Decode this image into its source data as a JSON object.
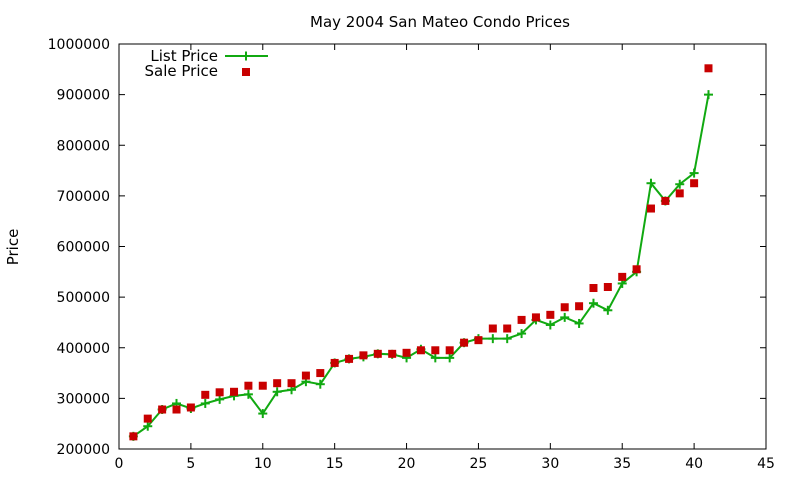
{
  "chart_data": {
    "type": "line",
    "title": "May 2004 San Mateo Condo Prices",
    "xlabel": "",
    "ylabel": "Price",
    "xlim": [
      0,
      45
    ],
    "ylim": [
      200000,
      1000000
    ],
    "x_ticks": [
      0,
      5,
      10,
      15,
      20,
      25,
      30,
      35,
      40,
      45
    ],
    "y_ticks": [
      200000,
      300000,
      400000,
      500000,
      600000,
      700000,
      800000,
      900000,
      1000000
    ],
    "grid": false,
    "legend_position": "top-left",
    "colors": {
      "list": "#11a911",
      "sale": "#c80000"
    },
    "x": [
      1,
      2,
      3,
      4,
      5,
      6,
      7,
      8,
      9,
      10,
      11,
      12,
      13,
      14,
      15,
      16,
      17,
      18,
      19,
      20,
      21,
      22,
      23,
      24,
      25,
      26,
      27,
      28,
      29,
      30,
      31,
      32,
      33,
      34,
      35,
      36,
      37,
      38,
      39,
      40,
      41
    ],
    "series": [
      {
        "name": "List Price",
        "style": "linespoints",
        "marker": "plus",
        "values": [
          225000,
          245000,
          278000,
          290000,
          280000,
          290000,
          298000,
          305000,
          308000,
          270000,
          313000,
          317000,
          333000,
          328000,
          370000,
          378000,
          382000,
          388000,
          387000,
          380000,
          397000,
          380000,
          380000,
          410000,
          418000,
          418000,
          418000,
          428000,
          455000,
          445000,
          460000,
          448000,
          488000,
          474000,
          527000,
          550000,
          725000,
          690000,
          723000,
          745000,
          900000
        ]
      },
      {
        "name": "Sale Price",
        "style": "points",
        "marker": "square",
        "values": [
          225000,
          260000,
          278000,
          278000,
          282000,
          307000,
          312000,
          313000,
          325000,
          325000,
          330000,
          330000,
          345000,
          350000,
          370000,
          378000,
          385000,
          388000,
          388000,
          390000,
          395000,
          395000,
          395000,
          410000,
          415000,
          438000,
          438000,
          455000,
          460000,
          465000,
          480000,
          482000,
          518000,
          520000,
          540000,
          555000,
          675000,
          690000,
          705000,
          725000,
          952000
        ]
      }
    ]
  }
}
